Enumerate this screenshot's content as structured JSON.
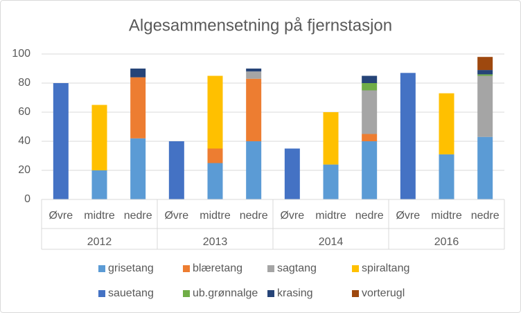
{
  "chart_data": {
    "type": "stacked-bar",
    "title": "Algesammensetning på fjernstasjon",
    "categories": [
      "Øvre",
      "midtre",
      "nedre",
      "Øvre",
      "midtre",
      "nedre",
      "Øvre",
      "midtre",
      "nedre",
      "Øvre",
      "midtre",
      "nedre"
    ],
    "groups": [
      "2012",
      "2013",
      "2014",
      "2016"
    ],
    "ylim": [
      0,
      100
    ],
    "yticks": [
      0,
      20,
      40,
      60,
      80,
      100
    ],
    "grid": true,
    "series": [
      {
        "name": "grisetang",
        "color": "#5b9bd5",
        "values": [
          null,
          20,
          42,
          null,
          25,
          40,
          null,
          24,
          40,
          null,
          31,
          43
        ]
      },
      {
        "name": "blæretang",
        "color": "#ed7d31",
        "values": [
          null,
          null,
          42,
          null,
          10,
          43,
          null,
          null,
          5,
          null,
          null,
          null
        ]
      },
      {
        "name": "sagtang",
        "color": "#a5a5a5",
        "values": [
          null,
          null,
          null,
          null,
          null,
          5,
          null,
          null,
          30,
          null,
          null,
          42
        ]
      },
      {
        "name": "spiraltang",
        "color": "#ffc000",
        "values": [
          null,
          45,
          null,
          null,
          50,
          null,
          null,
          36,
          null,
          null,
          42,
          null
        ]
      },
      {
        "name": "sauetang",
        "color": "#4472c4",
        "values": [
          80,
          null,
          null,
          40,
          null,
          null,
          35,
          null,
          null,
          87,
          null,
          null
        ]
      },
      {
        "name": "ub.grønnalge",
        "color": "#70ad47",
        "values": [
          null,
          null,
          null,
          null,
          null,
          null,
          null,
          null,
          5,
          null,
          null,
          1
        ]
      },
      {
        "name": "krasing",
        "color": "#264478",
        "values": [
          null,
          null,
          6,
          null,
          null,
          2,
          null,
          null,
          5,
          null,
          null,
          3
        ]
      },
      {
        "name": "vorterugl",
        "color": "#9e480e",
        "values": [
          null,
          null,
          null,
          null,
          null,
          null,
          null,
          null,
          null,
          null,
          null,
          9
        ]
      }
    ]
  }
}
